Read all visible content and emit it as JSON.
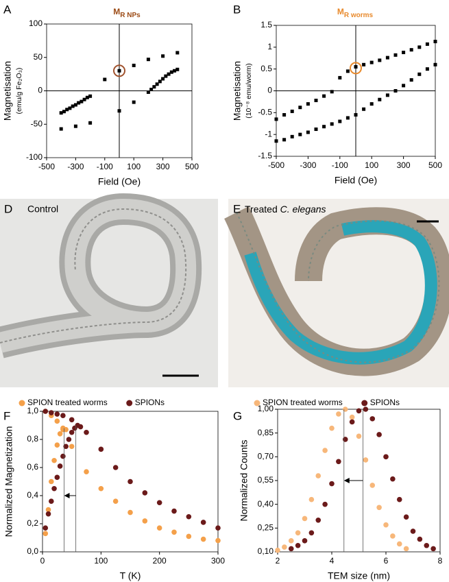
{
  "chart_data": [
    {
      "type": "scatter",
      "panel": "A",
      "title": "M",
      "title_subscript": "R NPs",
      "title_color": "#9b4a14",
      "xlabel": "Field (Oe)",
      "ylabel": "Magnetisation",
      "ylabel_units": "(emu/g Fe₂O₃)",
      "color": "#000000",
      "marker": "square",
      "zero_axes": true,
      "x": [
        -400,
        -380,
        -360,
        -340,
        -320,
        -300,
        -280,
        -260,
        -240,
        -220,
        -200,
        -400,
        -300,
        -200,
        -100,
        0,
        100,
        200,
        300,
        400,
        0,
        100,
        200,
        220,
        240,
        260,
        280,
        300,
        320,
        340,
        360,
        380,
        400
      ],
      "values": [
        -33,
        -31,
        -28,
        -26,
        -23,
        -21,
        -18,
        -16,
        -13,
        -10,
        -8,
        -57,
        -53,
        -48,
        17,
        30,
        38,
        47,
        52,
        57,
        -30,
        -17,
        -2,
        2,
        6,
        10,
        14,
        18,
        22,
        25,
        28,
        30,
        32
      ],
      "xlim": [
        -500,
        500
      ],
      "xticks": [
        -500,
        -300,
        -100,
        100,
        300,
        500
      ],
      "ylim": [
        -100,
        100
      ],
      "yticks": [
        -100,
        -50,
        0,
        50,
        100
      ],
      "highlight": {
        "x": 0,
        "y": 30,
        "color": "#a0522d"
      }
    },
    {
      "type": "scatter",
      "panel": "B",
      "title": "M",
      "title_subscript": "R worms",
      "title_color": "#e8892b",
      "xlabel": "Field (Oe)",
      "ylabel": "Magnetisation",
      "ylabel_units": "(10⁻⁸ emu/worm)",
      "color": "#000000",
      "marker": "square",
      "zero_axes": true,
      "x": [
        -500,
        -450,
        -400,
        -350,
        -300,
        -250,
        -200,
        -150,
        -100,
        -50,
        0,
        50,
        100,
        150,
        200,
        250,
        300,
        350,
        400,
        450,
        500,
        -500,
        -450,
        -400,
        -350,
        -300,
        -250,
        -200,
        -150,
        -100,
        -50,
        0,
        50,
        100,
        150,
        200,
        250,
        300,
        350,
        400,
        450,
        500
      ],
      "values": [
        -0.65,
        -0.55,
        -0.47,
        -0.38,
        -0.3,
        -0.22,
        -0.12,
        -0.02,
        0.3,
        0.45,
        0.55,
        0.6,
        0.65,
        0.7,
        0.76,
        0.82,
        0.88,
        0.94,
        1.0,
        1.07,
        1.13,
        -1.15,
        -1.12,
        -1.05,
        -1.0,
        -0.95,
        -0.88,
        -0.82,
        -0.76,
        -0.7,
        -0.62,
        -0.55,
        -0.42,
        -0.3,
        -0.2,
        -0.1,
        0,
        0.12,
        0.25,
        0.38,
        0.5,
        0.6
      ],
      "xlim": [
        -500,
        500
      ],
      "xticks": [
        -500,
        -300,
        -100,
        100,
        300,
        500
      ],
      "ylim": [
        -1.5,
        1.5
      ],
      "yticks": [
        -1.5,
        -1,
        -0.5,
        0,
        0.5,
        1,
        1.5
      ],
      "highlight": {
        "x": 0,
        "y": 0.52,
        "color": "#e8892b"
      }
    },
    {
      "type": "scatter",
      "panel": "F",
      "xlabel": "T (K)",
      "ylabel": "Normalized Magnetization",
      "marker": "circle",
      "series": [
        {
          "name": "SPION treated worms",
          "color": "#f4a04a",
          "x": [
            5,
            15,
            25,
            35,
            50,
            75,
            100,
            125,
            150,
            175,
            200,
            225,
            250,
            275,
            300,
            5,
            10,
            15,
            20,
            25,
            30,
            35,
            40
          ],
          "values": [
            1.0,
            0.97,
            0.93,
            0.87,
            0.75,
            0.57,
            0.45,
            0.36,
            0.28,
            0.22,
            0.17,
            0.14,
            0.11,
            0.09,
            0.08,
            0.13,
            0.3,
            0.5,
            0.65,
            0.76,
            0.84,
            0.88,
            0.87
          ]
        },
        {
          "name": "SPIONs",
          "color": "#6b1a1a",
          "x": [
            5,
            15,
            25,
            35,
            50,
            75,
            100,
            125,
            150,
            175,
            200,
            225,
            250,
            275,
            300,
            5,
            10,
            15,
            20,
            25,
            30,
            35,
            40,
            45,
            50,
            55,
            60,
            65
          ],
          "values": [
            1.0,
            0.99,
            0.98,
            0.97,
            0.94,
            0.85,
            0.73,
            0.6,
            0.5,
            0.42,
            0.35,
            0.29,
            0.25,
            0.21,
            0.17,
            0.17,
            0.27,
            0.36,
            0.45,
            0.53,
            0.61,
            0.68,
            0.75,
            0.8,
            0.85,
            0.88,
            0.9,
            0.89
          ]
        }
      ],
      "xlim": [
        0,
        300
      ],
      "xticks": [
        0,
        100,
        200,
        300
      ],
      "ylim": [
        0,
        1
      ],
      "yticks": [
        {
          "value": 0,
          "label": "0,0"
        },
        {
          "value": 0.2,
          "label": "0,2"
        },
        {
          "value": 0.4,
          "label": "0,4"
        },
        {
          "value": 0.6,
          "label": "0,6"
        },
        {
          "value": 0.8,
          "label": "0,8"
        },
        {
          "value": 1,
          "label": "1,0"
        }
      ],
      "reference_lines": [
        {
          "x": 37,
          "y": 0.88
        },
        {
          "x": 57,
          "y": 0.9
        }
      ],
      "arrow_y": 0.4
    },
    {
      "type": "scatter",
      "panel": "G",
      "xlabel": "TEM size (nm)",
      "ylabel": "Normalized Counts",
      "marker": "circle",
      "series": [
        {
          "name": "SPION treated worms",
          "color": "#f7b77a",
          "x": [
            2,
            2.25,
            2.5,
            2.75,
            3,
            3.25,
            3.5,
            3.75,
            4,
            4.25,
            4.5,
            4.75,
            5,
            5.25,
            5.5,
            5.75,
            6,
            6.25,
            6.5,
            6.75
          ],
          "values": [
            0.11,
            0.13,
            0.17,
            0.22,
            0.31,
            0.43,
            0.58,
            0.74,
            0.88,
            0.97,
            1.0,
            0.95,
            0.83,
            0.68,
            0.52,
            0.38,
            0.27,
            0.2,
            0.15,
            0.12
          ]
        },
        {
          "name": "SPIONs",
          "color": "#6b1a1a",
          "x": [
            2.5,
            2.75,
            3,
            3.25,
            3.5,
            3.75,
            4,
            4.25,
            4.5,
            4.75,
            5,
            5.25,
            5.5,
            5.75,
            6,
            6.25,
            6.5,
            6.75,
            7,
            7.25,
            7.5,
            7.75
          ],
          "values": [
            0.12,
            0.14,
            0.17,
            0.22,
            0.3,
            0.4,
            0.53,
            0.67,
            0.81,
            0.92,
            0.99,
            1.0,
            0.94,
            0.84,
            0.7,
            0.56,
            0.43,
            0.32,
            0.23,
            0.18,
            0.14,
            0.12
          ]
        }
      ],
      "xlim": [
        2,
        8
      ],
      "xticks": [
        2,
        4,
        6,
        8
      ],
      "ylim": [
        0.1,
        1
      ],
      "yticks": [
        {
          "value": 0.1,
          "label": "0,10"
        },
        {
          "value": 0.25,
          "label": "0,25"
        },
        {
          "value": 0.4,
          "label": "0,40"
        },
        {
          "value": 0.55,
          "label": "0,55"
        },
        {
          "value": 0.7,
          "label": "0,70"
        },
        {
          "value": 0.85,
          "label": "0,85"
        },
        {
          "value": 1,
          "label": "1,00"
        }
      ],
      "reference_lines": [
        {
          "x": 4.45,
          "y": 1.0
        },
        {
          "x": 5.15,
          "y": 1.0
        }
      ],
      "arrow_y": 0.55
    }
  ],
  "images": [
    {
      "panel": "D",
      "label": "Control"
    },
    {
      "panel": "E",
      "label": "Treated",
      "label_italic": "C. elegans"
    }
  ]
}
